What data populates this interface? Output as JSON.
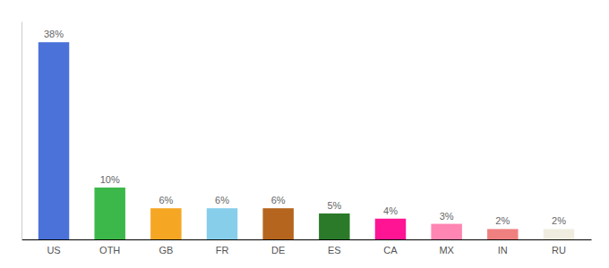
{
  "chart_data": {
    "type": "bar",
    "categories": [
      "US",
      "OTH",
      "GB",
      "FR",
      "DE",
      "ES",
      "CA",
      "MX",
      "IN",
      "RU"
    ],
    "values": [
      38,
      10,
      6,
      6,
      6,
      5,
      4,
      3,
      2,
      2
    ],
    "value_labels": [
      "38%",
      "10%",
      "6%",
      "6%",
      "6%",
      "5%",
      "4%",
      "3%",
      "2%",
      "2%"
    ],
    "colors": [
      "#4a72d9",
      "#3cb84a",
      "#f5a623",
      "#87ceeb",
      "#b5651d",
      "#2a7a2a",
      "#ff1493",
      "#ff85b3",
      "#f08080",
      "#f0ede0"
    ],
    "ylim": [
      0,
      42
    ],
    "data_labels": true,
    "tick_labels": "x",
    "grid": false
  }
}
